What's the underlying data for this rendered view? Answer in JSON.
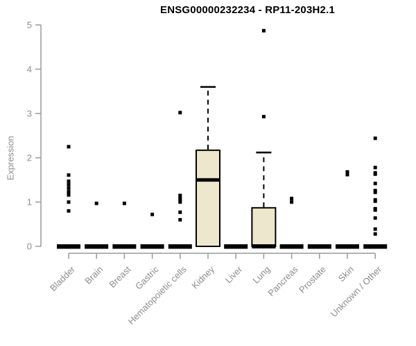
{
  "title": "ENSG00000232234 - RP11-203H2.1",
  "chart_data": {
    "type": "boxplot",
    "title": "ENSG00000232234 - RP11-203H2.1",
    "xlabel": "",
    "ylabel": "Expression",
    "ylim": [
      0,
      5
    ],
    "yticks": [
      0,
      1,
      2,
      3,
      4,
      5
    ],
    "grid": false,
    "legend": null,
    "categories": [
      "Bladder",
      "Brain",
      "Breast",
      "Gastric",
      "Hematopoietic cells",
      "Kidney",
      "Liver",
      "Lung",
      "Pancreas",
      "Prostate",
      "Skin",
      "Unknown / Other"
    ],
    "series": [
      {
        "category": "Bladder",
        "low": 0,
        "q1": 0,
        "median": 0,
        "q3": 0,
        "high": 0,
        "outliers": [
          2.25,
          1.61,
          1.47,
          1.39,
          1.31,
          1.23,
          1.16,
          1.0,
          0.8
        ]
      },
      {
        "category": "Brain",
        "low": 0,
        "q1": 0,
        "median": 0,
        "q3": 0,
        "high": 0,
        "outliers": [
          0.97
        ]
      },
      {
        "category": "Breast",
        "low": 0,
        "q1": 0,
        "median": 0,
        "q3": 0,
        "high": 0,
        "outliers": [
          0.97
        ]
      },
      {
        "category": "Gastric",
        "low": 0,
        "q1": 0,
        "median": 0,
        "q3": 0,
        "high": 0,
        "outliers": [
          0.72
        ]
      },
      {
        "category": "Hematopoietic cells",
        "low": 0,
        "q1": 0,
        "median": 0,
        "q3": 0,
        "high": 0,
        "outliers": [
          3.02,
          1.15,
          1.1,
          1.05,
          1.0,
          0.77,
          0.6
        ]
      },
      {
        "category": "Kidney",
        "low": 0,
        "q1": 0,
        "median": 1.5,
        "q3": 2.17,
        "high": 3.6,
        "outliers": []
      },
      {
        "category": "Liver",
        "low": 0,
        "q1": 0,
        "median": 0,
        "q3": 0,
        "high": 0,
        "outliers": []
      },
      {
        "category": "Lung",
        "low": 0,
        "q1": 0,
        "median": 0,
        "q3": 0.87,
        "high": 2.12,
        "outliers": [
          4.87,
          2.93
        ]
      },
      {
        "category": "Pancreas",
        "low": 0,
        "q1": 0,
        "median": 0,
        "q3": 0,
        "high": 0,
        "outliers": [
          1.08,
          1.0
        ]
      },
      {
        "category": "Prostate",
        "low": 0,
        "q1": 0,
        "median": 0,
        "q3": 0,
        "high": 0,
        "outliers": []
      },
      {
        "category": "Skin",
        "low": 0,
        "q1": 0,
        "median": 0,
        "q3": 0,
        "high": 0,
        "outliers": [
          1.68,
          1.62
        ]
      },
      {
        "category": "Unknown / Other",
        "low": 0,
        "q1": 0,
        "median": 0,
        "q3": 0,
        "high": 0,
        "outliers": [
          2.44,
          1.78,
          1.66,
          1.63,
          1.42,
          1.26,
          1.22,
          1.05,
          1.02,
          0.85,
          0.82,
          0.64,
          0.39,
          0.28
        ]
      }
    ],
    "colors": {
      "box_fill": "#EDE8CD",
      "box_border": "#000000",
      "median": "#000000",
      "outlier": "#000000",
      "axis": "#999999",
      "tick_label": "#8C8C8C",
      "title": "#000000",
      "background": "#FFFFFF"
    }
  }
}
